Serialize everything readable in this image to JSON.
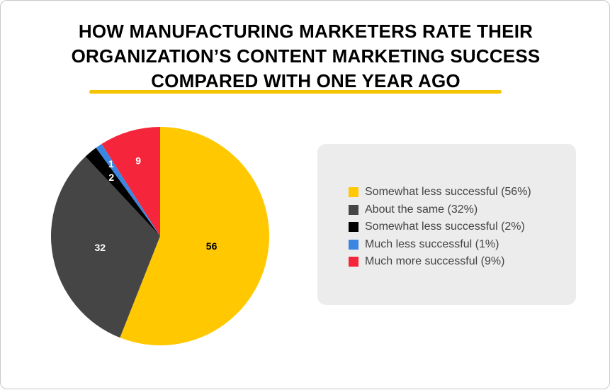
{
  "title_lines": [
    "HOW MANUFACTURING MARKETERS RATE THEIR",
    "ORGANIZATION’S CONTENT MARKETING SUCCESS",
    "COMPARED WITH ONE YEAR AGO"
  ],
  "accent_color": "#f5c400",
  "chart_data": {
    "type": "pie",
    "title": "HOW MANUFACTURING MARKETERS RATE THEIR ORGANIZATION’S CONTENT MARKETING SUCCESS COMPARED WITH ONE YEAR AGO",
    "categories": [
      "Somewhat less successful",
      "About the same",
      "Somewhat less successful",
      "Much less successful",
      "Much more successful"
    ],
    "values": [
      56,
      32,
      2,
      1,
      9
    ],
    "data_labels": [
      "56",
      "32",
      "2",
      "1",
      "9"
    ],
    "colors": [
      "#ffc800",
      "#454545",
      "#000000",
      "#3b86e0",
      "#f5253b"
    ],
    "label_colors": [
      "#000000",
      "#ffffff",
      "#ffffff",
      "#ffffff",
      "#ffffff"
    ],
    "legend": [
      "Somewhat less successful (56%)",
      "About the same (32%)",
      "Somewhat less successful (2%)",
      "Much less successful (1%)",
      "Much more successful (9%)"
    ],
    "legend_placement": "right",
    "start_angle": "top",
    "direction": "clockwise"
  }
}
